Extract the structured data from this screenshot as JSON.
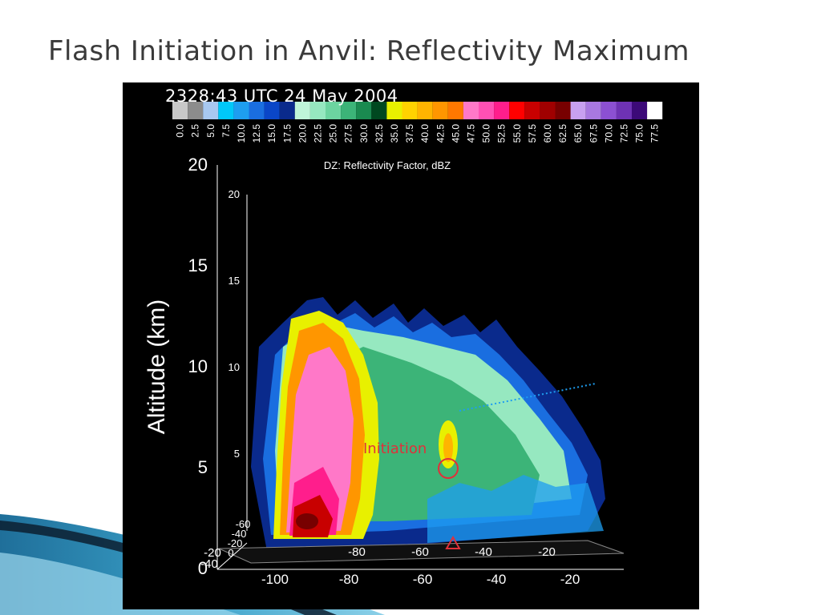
{
  "slide": {
    "title": "Flash Initiation in Anvil: Reflectivity Maximum"
  },
  "figure": {
    "timestamp": "2328:43 UTC 24 May 2004",
    "colorbar": {
      "label": "DZ: Reflectivity Factor, dBZ",
      "ticks": [
        "0.0",
        "2.5",
        "5.0",
        "7.5",
        "10.0",
        "12.5",
        "15.0",
        "17.5",
        "20.0",
        "22.5",
        "25.0",
        "27.5",
        "30.0",
        "32.5",
        "35.0",
        "37.5",
        "40.0",
        "42.5",
        "45.0",
        "47.5",
        "50.0",
        "52.5",
        "55.0",
        "57.5",
        "60.0",
        "62.5",
        "65.0",
        "67.5",
        "70.0",
        "72.5",
        "75.0",
        "77.5"
      ],
      "colors": [
        "#c8c8c8",
        "#8c8c8c",
        "#a8c8f0",
        "#00c8f8",
        "#1e9ef0",
        "#1a6ee0",
        "#0a46c8",
        "#0a2a8c",
        "#bff5d8",
        "#96e8c0",
        "#6cd4a0",
        "#3cb478",
        "#1a8a50",
        "#004820",
        "#e8f000",
        "#ffd200",
        "#ffb400",
        "#ff9600",
        "#ff7800",
        "#ff78c8",
        "#ff50b4",
        "#ff1e8c",
        "#ff0000",
        "#c80000",
        "#a00000",
        "#780000",
        "#c8a0f0",
        "#a878e0",
        "#8c50d2",
        "#6e32b4",
        "#3c0a78",
        "#ffffff"
      ]
    },
    "y_axis": {
      "label": "Altitude (km)",
      "ticks": [
        "20",
        "15",
        "10",
        "5",
        "0"
      ],
      "inner_ticks": [
        "20",
        "15",
        "10",
        "5"
      ]
    },
    "x_axis": {
      "ticks": [
        "-100",
        "-80",
        "-60",
        "-40",
        "-20"
      ],
      "inner_ticks": [
        "-80",
        "-60",
        "-40",
        "-20"
      ]
    },
    "depth_axis": {
      "ticks": [
        "-60",
        "-40",
        "-20",
        "0"
      ],
      "lower_ticks": [
        "-20",
        "-40"
      ]
    },
    "annotation": {
      "label": "Initiation",
      "color": "#e0303a"
    }
  }
}
